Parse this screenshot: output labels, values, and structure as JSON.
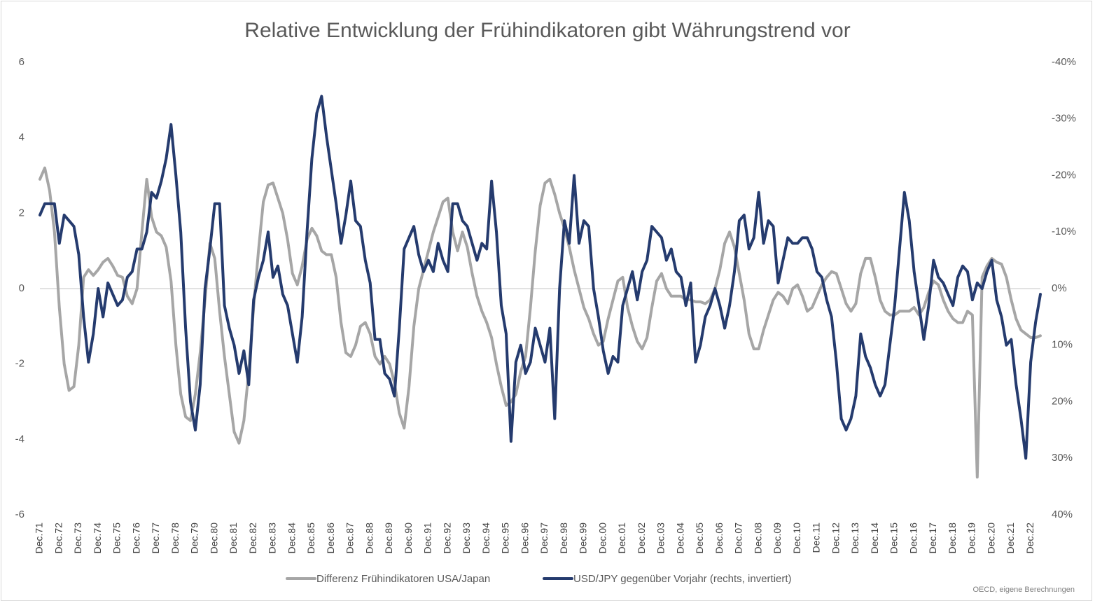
{
  "chart_data": {
    "type": "line",
    "title": "Relative Entwicklung der Frühindikatoren gibt Währungstrend vor",
    "source": "OECD, eigene Berechnungen",
    "categories": [
      "Dec.71",
      null,
      null,
      null,
      "Dec.72",
      null,
      null,
      null,
      "Dec.73",
      null,
      null,
      null,
      "Dec.74",
      null,
      null,
      null,
      "Dec.75",
      null,
      null,
      null,
      "Dec.76",
      null,
      null,
      null,
      "Dec.77",
      null,
      null,
      null,
      "Dec.78",
      null,
      null,
      null,
      "Dec.79",
      null,
      null,
      null,
      "Dec.80",
      null,
      null,
      null,
      "Dec.81",
      null,
      null,
      null,
      "Dec.82",
      null,
      null,
      null,
      "Dec.83",
      null,
      null,
      null,
      "Dec.84",
      null,
      null,
      null,
      "Dec.85",
      null,
      null,
      null,
      "Dec.86",
      null,
      null,
      null,
      "Dec.87",
      null,
      null,
      null,
      "Dec.88",
      null,
      null,
      null,
      "Dec.89",
      null,
      null,
      null,
      "Dec.90",
      null,
      null,
      null,
      "Dec.91",
      null,
      null,
      null,
      "Dec.92",
      null,
      null,
      null,
      "Dec.93",
      null,
      null,
      null,
      "Dec.94",
      null,
      null,
      null,
      "Dec.95",
      null,
      null,
      null,
      "Dec.96",
      null,
      null,
      null,
      "Dec.97",
      null,
      null,
      null,
      "Dec.98",
      null,
      null,
      null,
      "Dec.99",
      null,
      null,
      null,
      "Dec.00",
      null,
      null,
      null,
      "Dec.01",
      null,
      null,
      null,
      "Dec.02",
      null,
      null,
      null,
      "Dec.03",
      null,
      null,
      null,
      "Dec.04",
      null,
      null,
      null,
      "Dec.05",
      null,
      null,
      null,
      "Dec.06",
      null,
      null,
      null,
      "Dec.07",
      null,
      null,
      null,
      "Dec.08",
      null,
      null,
      null,
      "Dec.09",
      null,
      null,
      null,
      "Dec.10",
      null,
      null,
      null,
      "Dec.11",
      null,
      null,
      null,
      "Dec.12",
      null,
      null,
      null,
      "Dec.13",
      null,
      null,
      null,
      "Dec.14",
      null,
      null,
      null,
      "Dec.15",
      null,
      null,
      null,
      "Dec.16",
      null,
      null,
      null,
      "Dec.17",
      null,
      null,
      null,
      "Dec.18",
      null,
      null,
      null,
      "Dec.19",
      null,
      null,
      null,
      "Dec.20",
      null,
      null,
      null,
      "Dec.21",
      null,
      null,
      null,
      "Dec.22",
      null,
      null
    ],
    "series": [
      {
        "name": "Differenz Frühindikatoren USA/Japan",
        "color": "#a6a6a6",
        "values": [
          2.9,
          3.2,
          2.6,
          1.5,
          -0.5,
          -2.0,
          -2.7,
          -2.6,
          -1.5,
          0.3,
          0.5,
          0.35,
          0.5,
          0.7,
          0.8,
          0.6,
          0.35,
          0.3,
          -0.2,
          -0.4,
          0,
          1.5,
          2.9,
          1.9,
          1.5,
          1.4,
          1.1,
          0.2,
          -1.5,
          -2.8,
          -3.4,
          -3.5,
          -2.8,
          -1.7,
          -0.3,
          1.2,
          0.8,
          -0.6,
          -1.8,
          -2.8,
          -3.8,
          -4.1,
          -3.5,
          -2.2,
          -0.5,
          1.0,
          2.3,
          2.75,
          2.8,
          2.4,
          2.0,
          1.3,
          0.4,
          0.1,
          0.6,
          1.3,
          1.6,
          1.4,
          1.0,
          0.9,
          0.9,
          0.3,
          -0.9,
          -1.7,
          -1.8,
          -1.5,
          -1.0,
          -0.9,
          -1.2,
          -1.8,
          -2.0,
          -1.8,
          -2.0,
          -2.5,
          -3.3,
          -3.7,
          -2.6,
          -1.0,
          0,
          0.5,
          1.0,
          1.5,
          1.9,
          2.3,
          2.4,
          1.5,
          1.0,
          1.5,
          1.1,
          0.4,
          -0.2,
          -0.6,
          -0.9,
          -1.3,
          -2.0,
          -2.6,
          -3.1,
          -3.0,
          -2.8,
          -2.2,
          -1.8,
          -0.5,
          1.0,
          2.2,
          2.8,
          2.9,
          2.5,
          2.0,
          1.6,
          1.1,
          0.5,
          0,
          -0.5,
          -0.8,
          -1.2,
          -1.5,
          -1.4,
          -0.8,
          -0.3,
          0.2,
          0.3,
          -0.5,
          -1.0,
          -1.4,
          -1.6,
          -1.3,
          -0.5,
          0.2,
          0.4,
          0,
          -0.2,
          -0.2,
          -0.2,
          -0.3,
          -0.3,
          -0.35,
          -0.35,
          -0.4,
          -0.3,
          0,
          0.5,
          1.2,
          1.5,
          1.1,
          0.4,
          -0.3,
          -1.2,
          -1.6,
          -1.6,
          -1.1,
          -0.7,
          -0.3,
          -0.1,
          -0.2,
          -0.4,
          0,
          0.1,
          -0.2,
          -0.6,
          -0.5,
          -0.2,
          0.1,
          0.3,
          0.45,
          0.4,
          0,
          -0.4,
          -0.6,
          -0.4,
          0.4,
          0.8,
          0.8,
          0.3,
          -0.3,
          -0.6,
          -0.7,
          -0.7,
          -0.6,
          -0.6,
          -0.6,
          -0.5,
          -0.7,
          -0.5,
          -0.1,
          0.2,
          0.1,
          -0.3,
          -0.6,
          -0.8,
          -0.9,
          -0.9,
          -0.6,
          -0.7,
          -5.0,
          0.3,
          0.6,
          0.8,
          0.7,
          0.65,
          0.3,
          -0.3,
          -0.8,
          -1.1,
          -1.2,
          -1.3,
          -1.3,
          -1.25
        ]
      },
      {
        "name": "USD/JPY gegenüber Vorjahr (rechts, invertiert)",
        "color": "#253b6e",
        "axis": "y2",
        "values": [
          -13,
          -15,
          -15,
          -15,
          -8,
          -13,
          -12,
          -11,
          -6,
          5,
          13,
          8,
          0,
          5,
          -1,
          1,
          3,
          2,
          -2,
          -3,
          -7,
          -7,
          -10,
          -17,
          -16,
          -19,
          -23,
          -29,
          -20,
          -10,
          7,
          20,
          25,
          17,
          0,
          -7,
          -15,
          -15,
          3,
          7,
          10,
          15,
          11,
          17,
          2,
          -2,
          -5,
          -10,
          -2,
          -4,
          1,
          3,
          8,
          13,
          5,
          -10,
          -23,
          -31,
          -34,
          -27,
          -21,
          -15,
          -8,
          -13,
          -19,
          -12,
          -11,
          -5,
          -1,
          9,
          9,
          15,
          16,
          19,
          7,
          -7,
          -9,
          -11,
          -6,
          -3,
          -5,
          -3,
          -8,
          -5,
          -3,
          -15,
          -15,
          -12,
          -11,
          -8,
          -5,
          -8,
          -7,
          -19,
          -10,
          3,
          8,
          27,
          13,
          10,
          15,
          13,
          7,
          10,
          13,
          7,
          23,
          0,
          -12,
          -8,
          -20,
          -8,
          -12,
          -11,
          0,
          5,
          11,
          15,
          12,
          13,
          3,
          0,
          -3,
          2,
          -3,
          -5,
          -11,
          -10,
          -9,
          -5,
          -7,
          -3,
          -2,
          3,
          -1,
          13,
          10,
          5,
          3,
          0,
          3,
          7,
          3,
          -3,
          -12,
          -13,
          -7,
          -9,
          -17,
          -8,
          -12,
          -11,
          -1,
          -5,
          -9,
          -8,
          -8,
          -9,
          -9,
          -7,
          -3,
          -2,
          2,
          5,
          13,
          23,
          25,
          23,
          19,
          8,
          12,
          14,
          17,
          19,
          17,
          10,
          3,
          -7,
          -17,
          -12,
          -3,
          3,
          9,
          3,
          -5,
          -2,
          -1,
          1,
          3,
          -2,
          -4,
          -3,
          2,
          -1,
          0,
          -3,
          -5,
          2,
          5,
          10,
          9,
          17,
          23,
          30,
          13,
          6,
          1
        ]
      }
    ],
    "ylim": [
      -6,
      6
    ],
    "yticks": [
      -6,
      -4,
      -2,
      0,
      2,
      4,
      6
    ],
    "y2lim": [
      40,
      -40
    ],
    "y2ticks": [
      {
        "value": 40,
        "label": "40%"
      },
      {
        "value": 30,
        "label": "30%"
      },
      {
        "value": 20,
        "label": "20%"
      },
      {
        "value": 10,
        "label": "10%"
      },
      {
        "value": 0,
        "label": "0%"
      },
      {
        "value": -10,
        "label": "-10%"
      },
      {
        "value": -20,
        "label": "-20%"
      },
      {
        "value": -30,
        "label": "-30%"
      },
      {
        "value": -40,
        "label": "-40%"
      }
    ],
    "grid": false
  }
}
